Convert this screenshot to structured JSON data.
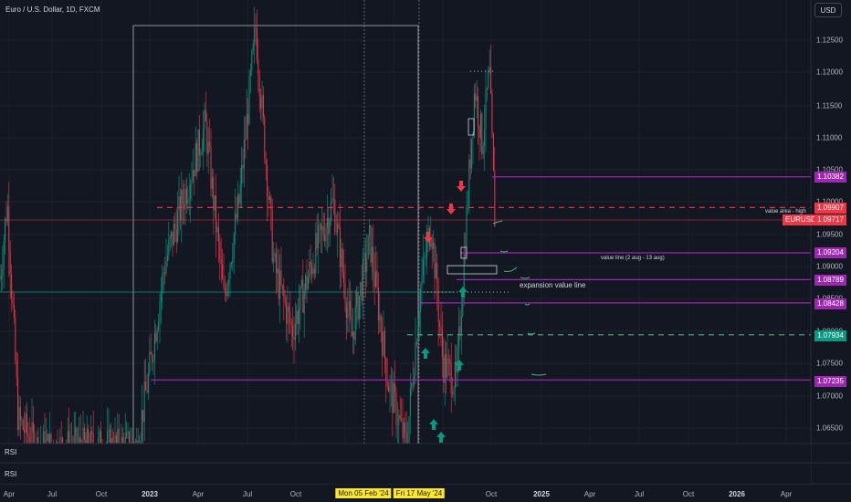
{
  "header": {
    "symbol_title": "Euro / U.S. Dollar, 1D, FXCM",
    "currency_button": "USD"
  },
  "indicators": {
    "rsi_1": "RSI",
    "rsi_2": "RSI"
  },
  "price_axis": {
    "labels": [
      "1.12500",
      "1.12000",
      "1.11500",
      "1.11000",
      "1.10500",
      "1.10000",
      "1.09500",
      "1.09000",
      "1.08500",
      "1.08000",
      "1.07500",
      "1.07000",
      "1.06500"
    ],
    "values": [
      1.125,
      1.12,
      1.115,
      1.11,
      1.105,
      1.1,
      1.095,
      1.09,
      1.085,
      1.08,
      1.075,
      1.07,
      1.065
    ]
  },
  "price_tags": [
    {
      "text": "1.10382",
      "color": "#9c27b0"
    },
    {
      "text": "1.09907",
      "color": "#f23645"
    },
    {
      "text": "EURUSD",
      "color": "#f23645"
    },
    {
      "text": "1.09717",
      "color": "#f23645"
    },
    {
      "text": "1.09204",
      "color": "#9c27b0"
    },
    {
      "text": "1.08789",
      "color": "#9c27b0"
    },
    {
      "text": "1.08428",
      "color": "#9c27b0"
    },
    {
      "text": "1.07934",
      "color": "#089981"
    },
    {
      "text": "1.07235",
      "color": "#9c27b0"
    }
  ],
  "annotations": {
    "value_area_high": "value area - high",
    "value_line": "value line  (2  aug - 13 aug)",
    "expansion_value_line": "expansion value line"
  },
  "time_axis": {
    "labels": [
      "Apr",
      "Jul",
      "Oct",
      "2023",
      "Apr",
      "Jul",
      "Oct",
      "Mon 05 Feb '24",
      "Fri 17 May '24",
      "Oct",
      "2025",
      "Apr",
      "Jul",
      "Oct",
      "2026",
      "Apr"
    ]
  },
  "chart_data": {
    "type": "candlestick",
    "title": "Euro / U.S. Dollar, 1D, FXCM",
    "y_range": [
      1.061,
      1.128
    ],
    "levels": [
      1.10382,
      1.09907,
      1.09717,
      1.09204,
      1.08789,
      1.08428,
      1.07934,
      1.07235
    ],
    "last_price": 1.09717,
    "colors": {
      "up": "#089981",
      "down": "#f23645",
      "level": "#9c27b0",
      "grid": "#1e222d"
    }
  }
}
